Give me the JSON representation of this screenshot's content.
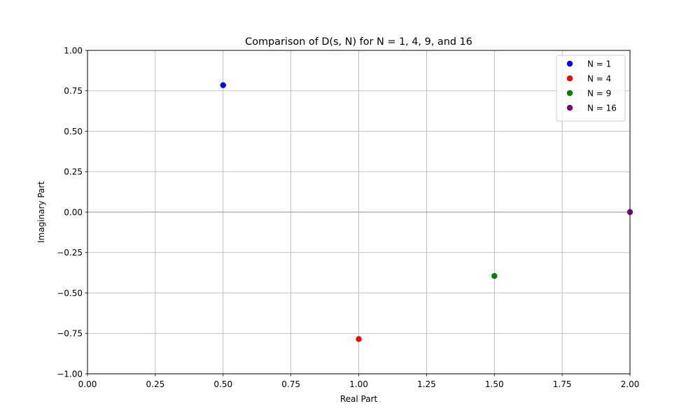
{
  "chart_data": {
    "type": "scatter",
    "title": "Comparison of D(s, N) for N = 1, 4, 9, and 16",
    "xlabel": "Real Part",
    "ylabel": "Imaginary Part",
    "xlim": [
      0.0,
      2.0
    ],
    "ylim": [
      -1.0,
      1.0
    ],
    "xticks": [
      "0.00",
      "0.25",
      "0.50",
      "0.75",
      "1.00",
      "1.25",
      "1.50",
      "1.75",
      "2.00"
    ],
    "yticks": [
      "−1.00",
      "−0.75",
      "−0.50",
      "−0.25",
      "0.00",
      "0.25",
      "0.50",
      "0.75",
      "1.00"
    ],
    "grid": true,
    "legend_position": "top-right",
    "series": [
      {
        "name": "N = 1",
        "color": "#0000ff",
        "points": [
          {
            "x": 0.5,
            "y": 0.785
          }
        ]
      },
      {
        "name": "N = 4",
        "color": "#ff0000",
        "points": [
          {
            "x": 1.0,
            "y": -0.785
          }
        ]
      },
      {
        "name": "N = 9",
        "color": "#008000",
        "points": [
          {
            "x": 1.5,
            "y": -0.395
          }
        ]
      },
      {
        "name": "N = 16",
        "color": "#800080",
        "points": [
          {
            "x": 2.0,
            "y": 0.0
          }
        ]
      }
    ]
  }
}
